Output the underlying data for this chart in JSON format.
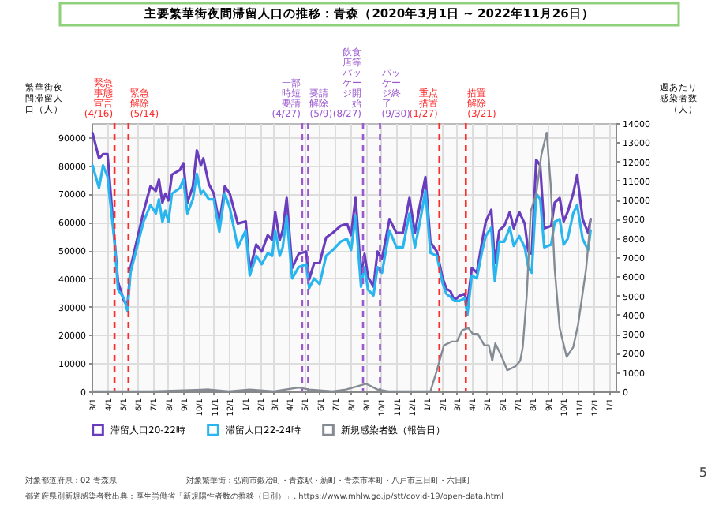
{
  "chart_data": {
    "type": "line",
    "title": "主要繁華街夜間滞留人口の推移：青森（2020年3月1日 ~ 2022年11月26日）",
    "ylabel": "繁華街夜間滞留人口（人）",
    "y2label": "週あたり感染者数（人）",
    "x": [
      "2020-03-03",
      "2020-03-16",
      "2020-03-24",
      "2020-04-02",
      "2020-04-16",
      "2020-04-23",
      "2020-05-05",
      "2020-05-12",
      "2020-05-18",
      "2020-05-31",
      "2020-06-13",
      "2020-06-27",
      "2020-07-08",
      "2020-07-14",
      "2020-07-21",
      "2020-07-27",
      "2020-08-02",
      "2020-08-09",
      "2020-08-25",
      "2020-09-01",
      "2020-09-09",
      "2020-09-20",
      "2020-09-28",
      "2020-10-06",
      "2020-10-11",
      "2020-10-22",
      "2020-11-01",
      "2020-11-12",
      "2020-11-23",
      "2020-12-03",
      "2020-12-19",
      "2021-01-04",
      "2021-01-12",
      "2021-01-25",
      "2021-02-05",
      "2021-02-17",
      "2021-02-26",
      "2021-03-04",
      "2021-03-13",
      "2021-03-19",
      "2021-03-27",
      "2021-04-07",
      "2021-04-20",
      "2021-05-05",
      "2021-05-11",
      "2021-05-21",
      "2021-06-01",
      "2021-06-14",
      "2021-06-27",
      "2021-07-13",
      "2021-07-26",
      "2021-08-03",
      "2021-08-12",
      "2021-08-23",
      "2021-08-30",
      "2021-09-06",
      "2021-09-17",
      "2021-09-25",
      "2021-10-04",
      "2021-10-19",
      "2021-11-02",
      "2021-11-15",
      "2021-11-28",
      "2021-12-09",
      "2021-12-19",
      "2021-12-30",
      "2022-01-09",
      "2022-01-22",
      "2022-02-02",
      "2022-02-10",
      "2022-02-18",
      "2022-02-26",
      "2022-03-08",
      "2022-03-19",
      "2022-03-24",
      "2022-04-02",
      "2022-04-12",
      "2022-04-23",
      "2022-04-30",
      "2022-05-11",
      "2022-05-18",
      "2022-05-27",
      "2022-06-06",
      "2022-06-17",
      "2022-06-25",
      "2022-07-06",
      "2022-07-17",
      "2022-07-24",
      "2022-07-31",
      "2022-08-09",
      "2022-08-17",
      "2022-08-25",
      "2022-09-08",
      "2022-09-15",
      "2022-09-25",
      "2022-10-03",
      "2022-10-11",
      "2022-10-22",
      "2022-10-30",
      "2022-11-10",
      "2022-11-21",
      "2022-11-26"
    ],
    "series": [
      {
        "name": "滞留人口20-22時",
        "color": "#6a3dbf",
        "values": [
          91500,
          82500,
          84000,
          84000,
          53600,
          38800,
          32000,
          30500,
          43700,
          53600,
          63500,
          72600,
          71000,
          75000,
          66800,
          70000,
          67600,
          76700,
          78400,
          80800,
          66800,
          72600,
          85300,
          80000,
          82500,
          73400,
          70000,
          59400,
          72600,
          70000,
          59400,
          60200,
          43000,
          52000,
          49500,
          55300,
          53600,
          63500,
          53600,
          57000,
          68500,
          43700,
          48700,
          49500,
          39600,
          45400,
          45400,
          54500,
          56100,
          58600,
          59400,
          55300,
          68500,
          41300,
          48700,
          40400,
          37100,
          49500,
          47000,
          61000,
          56100,
          56100,
          68500,
          56100,
          66000,
          75900,
          52800,
          49500,
          40400,
          36300,
          35500,
          32200,
          33800,
          34600,
          30500,
          43700,
          42000,
          53600,
          60200,
          64300,
          45400,
          57000,
          58600,
          63500,
          57700,
          63500,
          59400,
          49500,
          48700,
          82000,
          80000,
          57700,
          58600,
          66800,
          68500,
          60200,
          63500,
          70000,
          76700,
          61000,
          56100,
          61000
        ]
      },
      {
        "name": "滞留人口22-24時",
        "color": "#29b5ee",
        "values": [
          80000,
          72000,
          80000,
          76000,
          53000,
          36000,
          33000,
          28500,
          42000,
          51000,
          60000,
          66000,
          63000,
          68000,
          60000,
          64000,
          60000,
          70000,
          72000,
          75000,
          63000,
          68000,
          77000,
          70000,
          71000,
          68000,
          68000,
          56500,
          70000,
          65000,
          51000,
          57000,
          41000,
          48000,
          45000,
          49000,
          48000,
          57000,
          48000,
          51000,
          62000,
          40000,
          44000,
          45000,
          36500,
          40000,
          38000,
          48000,
          50000,
          53000,
          54000,
          50000,
          62000,
          37000,
          44000,
          36000,
          34000,
          44000,
          42000,
          57000,
          51000,
          51000,
          63000,
          51000,
          60000,
          71000,
          49000,
          48000,
          38500,
          34500,
          33500,
          32000,
          32000,
          33000,
          27000,
          41000,
          40000,
          50000,
          55000,
          58000,
          39000,
          53000,
          53000,
          58000,
          51500,
          55000,
          51000,
          44000,
          42000,
          70000,
          68000,
          51000,
          52000,
          60000,
          61000,
          52000,
          54000,
          63000,
          66000,
          54000,
          50000,
          57000
        ]
      },
      {
        "name": "新規感染者数（報告日）",
        "color": "#858b93",
        "axis": "y2",
        "x": [
          "2020-03-03",
          "2020-04-16",
          "2020-07-01",
          "2020-10-22",
          "2020-12-01",
          "2021-01-12",
          "2021-03-01",
          "2021-04-20",
          "2021-05-11",
          "2021-06-27",
          "2021-07-24",
          "2021-09-02",
          "2021-09-25",
          "2021-10-17",
          "2022-01-09",
          "2022-01-22",
          "2022-02-05",
          "2022-02-21",
          "2022-03-03",
          "2022-03-14",
          "2022-03-26",
          "2022-04-04",
          "2022-04-14",
          "2022-04-27",
          "2022-05-06",
          "2022-05-13",
          "2022-05-19",
          "2022-06-01",
          "2022-06-12",
          "2022-06-28",
          "2022-07-08",
          "2022-07-13",
          "2022-07-21",
          "2022-07-29",
          "2022-08-09",
          "2022-08-19",
          "2022-08-30",
          "2022-09-07",
          "2022-09-15",
          "2022-09-25",
          "2022-10-09",
          "2022-10-22",
          "2022-11-01",
          "2022-11-17",
          "2022-11-26"
        ],
        "values": [
          0,
          0,
          0,
          100,
          0,
          100,
          0,
          200,
          100,
          0,
          100,
          400,
          100,
          0,
          0,
          1100,
          2400,
          2600,
          2600,
          3200,
          3300,
          3000,
          3000,
          2400,
          2400,
          1600,
          2500,
          1800,
          1100,
          1300,
          1600,
          2300,
          5000,
          9400,
          10300,
          12300,
          13500,
          10800,
          6400,
          3300,
          1800,
          2300,
          3500,
          6400,
          9000
        ]
      }
    ],
    "xlim": [
      "2020-03-01",
      "2023-01-15"
    ],
    "xticks": [
      {
        "value": "2020-03-01",
        "label": "3/1"
      },
      {
        "value": "2020-04-01",
        "label": "4/1"
      },
      {
        "value": "2020-05-01",
        "label": "5/1"
      },
      {
        "value": "2020-06-01",
        "label": "6/1"
      },
      {
        "value": "2020-07-01",
        "label": "7/1"
      },
      {
        "value": "2020-08-01",
        "label": "8/1"
      },
      {
        "value": "2020-09-01",
        "label": "9/1"
      },
      {
        "value": "2020-10-01",
        "label": "10/1"
      },
      {
        "value": "2020-11-01",
        "label": "11/1"
      },
      {
        "value": "2020-12-01",
        "label": "12/1"
      },
      {
        "value": "2021-01-01",
        "label": "1/1"
      },
      {
        "value": "2021-02-01",
        "label": "2/1"
      },
      {
        "value": "2021-03-01",
        "label": "3/1"
      },
      {
        "value": "2021-04-01",
        "label": "4/1"
      },
      {
        "value": "2021-05-01",
        "label": "5/1"
      },
      {
        "value": "2021-06-01",
        "label": "6/1"
      },
      {
        "value": "2021-07-01",
        "label": "7/1"
      },
      {
        "value": "2021-08-01",
        "label": "8/1"
      },
      {
        "value": "2021-09-01",
        "label": "9/1"
      },
      {
        "value": "2021-10-01",
        "label": "10/1"
      },
      {
        "value": "2021-11-01",
        "label": "11/1"
      },
      {
        "value": "2021-12-01",
        "label": "12/1"
      },
      {
        "value": "2022-01-01",
        "label": "1/1"
      },
      {
        "value": "2022-02-01",
        "label": "2/1"
      },
      {
        "value": "2022-03-01",
        "label": "3/1"
      },
      {
        "value": "2022-04-01",
        "label": "4/1"
      },
      {
        "value": "2022-05-01",
        "label": "5/1"
      },
      {
        "value": "2022-06-01",
        "label": "6/1"
      },
      {
        "value": "2022-07-01",
        "label": "7/1"
      },
      {
        "value": "2022-08-01",
        "label": "8/1"
      },
      {
        "value": "2022-09-01",
        "label": "9/1"
      },
      {
        "value": "2022-10-01",
        "label": "10/1"
      },
      {
        "value": "2022-11-01",
        "label": "11/1"
      },
      {
        "value": "2022-12-01",
        "label": "12/1"
      },
      {
        "value": "2023-01-01",
        "label": "1/1"
      }
    ],
    "ylim": [
      0,
      95000
    ],
    "yticks": [
      0,
      10000,
      20000,
      30000,
      40000,
      50000,
      60000,
      70000,
      80000,
      90000
    ],
    "y2lim": [
      0,
      14000
    ],
    "y2ticks": [
      0,
      1000,
      2000,
      3000,
      4000,
      5000,
      6000,
      7000,
      8000,
      9000,
      10000,
      11000,
      12000,
      13000,
      14000
    ],
    "grid": true,
    "legend": "bottom",
    "line_style": "solid",
    "ref_lines": [
      {
        "axis": "x",
        "value": "2020-04-16",
        "label": "緊急事態宣言(4/16)",
        "color": "#ff2a2a",
        "line_style": "dashed"
      },
      {
        "axis": "x",
        "value": "2020-05-14",
        "label": "緊急解除(5/14)",
        "color": "#ff2a2a",
        "line_style": "dashed"
      },
      {
        "axis": "x",
        "value": "2021-04-27",
        "label": "一部時短要請(4/27)",
        "color": "#9b59d0",
        "line_style": "dashed"
      },
      {
        "axis": "x",
        "value": "2021-05-09",
        "label": "要請解除(5/9)",
        "color": "#9b59d0",
        "line_style": "dashed"
      },
      {
        "axis": "x",
        "value": "2021-08-27",
        "label": "飲食店等パッケージ開始(8/27)",
        "color": "#9b59d0",
        "line_style": "dashed"
      },
      {
        "axis": "x",
        "value": "2021-09-30",
        "label": "パッケージ終了(9/30)",
        "color": "#9b59d0",
        "line_style": "dashed"
      },
      {
        "axis": "x",
        "value": "2022-01-27",
        "label": "重点措置(1/27)",
        "color": "#ff2a2a",
        "line_style": "dashed"
      },
      {
        "axis": "x",
        "value": "2022-03-21",
        "label": "措置解除(3/21)",
        "color": "#ff2a2a",
        "line_style": "dashed"
      }
    ],
    "annotations": [
      "対象都道府県：02 青森県",
      "対象繁華街：弘前市鍛冶町・青森駅・新町・青森市本町・八戸市三日町・六日町",
      "都道府県別新規感染者数出典：厚生労働省「新規陽性者数の推移（日別）」, https://www.mhlw.go.jp/stt/covid-19/open-data.html",
      "5"
    ]
  }
}
